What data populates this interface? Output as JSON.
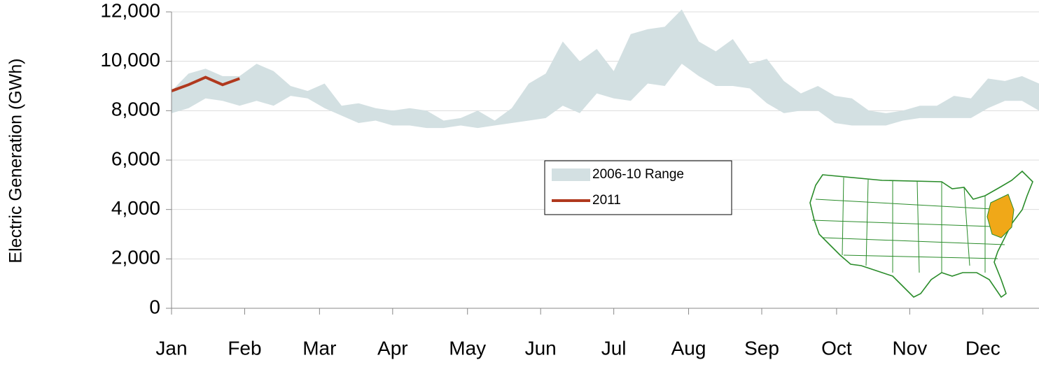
{
  "chart_data": {
    "type": "line",
    "y_label": "Electric Generation (GWh)",
    "x": [
      1,
      2,
      3,
      4,
      5,
      6,
      7,
      8,
      9,
      10,
      11,
      12,
      13,
      14,
      15,
      16,
      17,
      18,
      19,
      20,
      21,
      22,
      23,
      24,
      25,
      26,
      27,
      28,
      29,
      30,
      31,
      32,
      33,
      34,
      35,
      36,
      37,
      38,
      39,
      40,
      41,
      42,
      43,
      44,
      45,
      46,
      47,
      48,
      49,
      50,
      51,
      52
    ],
    "xlim": [
      1,
      52
    ],
    "xticks": [
      {
        "value": 1,
        "label": "Jan"
      },
      {
        "value": 5.3,
        "label": "Feb"
      },
      {
        "value": 9.7,
        "label": "Mar"
      },
      {
        "value": 14,
        "label": "Apr"
      },
      {
        "value": 18.4,
        "label": "May"
      },
      {
        "value": 22.7,
        "label": "Jun"
      },
      {
        "value": 27,
        "label": "Jul"
      },
      {
        "value": 31.4,
        "label": "Aug"
      },
      {
        "value": 35.7,
        "label": "Sep"
      },
      {
        "value": 40.1,
        "label": "Oct"
      },
      {
        "value": 44.4,
        "label": "Nov"
      },
      {
        "value": 48.7,
        "label": "Dec"
      }
    ],
    "ylim": [
      0,
      12000
    ],
    "yticks": [
      {
        "value": 0,
        "label": "0"
      },
      {
        "value": 2000,
        "label": "2,000"
      },
      {
        "value": 4000,
        "label": "4,000"
      },
      {
        "value": 6000,
        "label": "6,000"
      },
      {
        "value": 8000,
        "label": "8,000"
      },
      {
        "value": 10000,
        "label": "10,000"
      },
      {
        "value": 12000,
        "label": "12,000"
      }
    ],
    "grid": true,
    "legend": "center",
    "series": [
      {
        "name": "2006-10 Range",
        "kind": "range",
        "color": "#d3e0e2",
        "low": [
          7900,
          8100,
          8500,
          8400,
          8200,
          8400,
          8200,
          8600,
          8500,
          8100,
          7800,
          7500,
          7600,
          7400,
          7400,
          7300,
          7300,
          7400,
          7300,
          7400,
          7500,
          7600,
          7700,
          8200,
          7900,
          8700,
          8500,
          8400,
          9100,
          9000,
          9900,
          9400,
          9000,
          9000,
          8900,
          8300,
          7900,
          8000,
          8000,
          7500,
          7400,
          7400,
          7400,
          7600,
          7700,
          7700,
          7700,
          7700,
          8100,
          8400,
          8400,
          8000
        ],
        "high": [
          8800,
          9500,
          9700,
          9400,
          9400,
          9900,
          9600,
          9000,
          8800,
          9100,
          8200,
          8300,
          8100,
          8000,
          8100,
          8000,
          7600,
          7700,
          8000,
          7600,
          8100,
          9100,
          9500,
          10800,
          10000,
          10500,
          9600,
          11100,
          11300,
          11400,
          12100,
          10800,
          10400,
          10900,
          9900,
          10100,
          9200,
          8700,
          9000,
          8600,
          8500,
          8000,
          7900,
          8000,
          8200,
          8200,
          8600,
          8500,
          9300,
          9200,
          9400,
          9100
        ]
      },
      {
        "name": "2011",
        "kind": "line",
        "color": "#b0391e",
        "values": [
          8800,
          9050,
          9350,
          9050,
          9300,
          null,
          null,
          null,
          null,
          null,
          null,
          null,
          null,
          null,
          null,
          null,
          null,
          null,
          null,
          null,
          null,
          null,
          null,
          null,
          null,
          null,
          null,
          null,
          null,
          null,
          null,
          null,
          null,
          null,
          null,
          null,
          null,
          null,
          null,
          null,
          null,
          null,
          null,
          null,
          null,
          null,
          null,
          null,
          null,
          null,
          null,
          null
        ]
      }
    ]
  }
}
